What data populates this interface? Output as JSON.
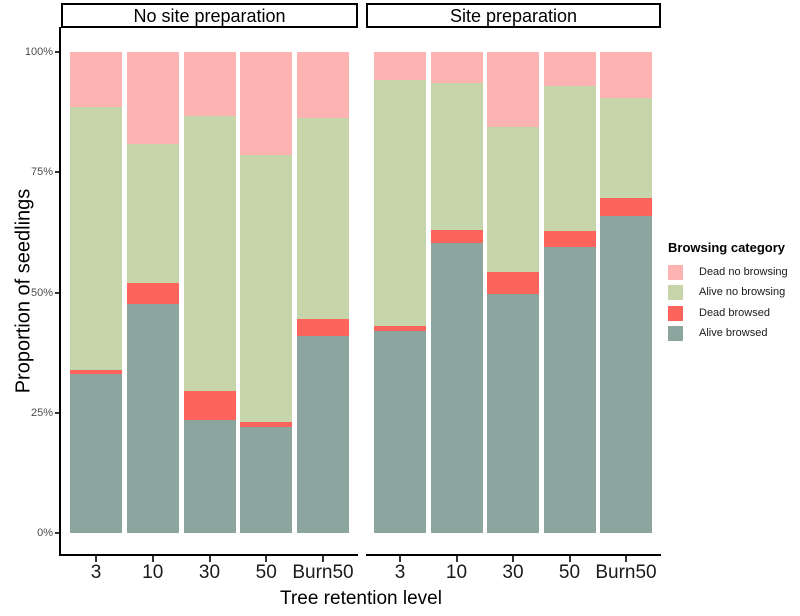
{
  "chart_data": {
    "type": "bar",
    "stacked": true,
    "orientation": "vertical",
    "title": "",
    "xlabel": "Tree retention level",
    "ylabel": "Proportion of seedlings",
    "ylim": [
      0,
      100
    ],
    "grid": false,
    "panel_background": "#ffffff",
    "y_ticks": [
      {
        "label": "0%",
        "value": 0
      },
      {
        "label": "25%",
        "value": 25
      },
      {
        "label": "50%",
        "value": 50
      },
      {
        "label": "75%",
        "value": 75
      },
      {
        "label": "100%",
        "value": 100
      }
    ],
    "categories": [
      "3",
      "10",
      "30",
      "50",
      "Burn50"
    ],
    "legend": {
      "title": "Browsing category",
      "position": "right",
      "entries": [
        {
          "label": "Dead no browsing",
          "color": "#FCB3B1"
        },
        {
          "label": "Alive no browsing",
          "color": "#C7D5AB"
        },
        {
          "label": "Dead browsed",
          "color": "#FC645C"
        },
        {
          "label": "Alive browsed",
          "color": "#8CA69F"
        }
      ]
    },
    "stack_order_bottom_to_top": [
      "Alive browsed",
      "Dead browsed",
      "Alive no browsing",
      "Dead no browsing"
    ],
    "facets": [
      {
        "label": "No site preparation",
        "series": [
          {
            "name": "Dead no browsing",
            "values": [
              11.4,
              19.1,
              13.2,
              21.4,
              13.8
            ]
          },
          {
            "name": "Alive no browsing",
            "values": [
              54.6,
              29.0,
              57.3,
              55.6,
              41.6
            ]
          },
          {
            "name": "Dead browsed",
            "values": [
              1.0,
              4.2,
              6.0,
              1.0,
              3.6
            ]
          },
          {
            "name": "Alive browsed",
            "values": [
              33.0,
              47.7,
              23.5,
              22.0,
              41.0
            ]
          }
        ]
      },
      {
        "label": "Site preparation",
        "series": [
          {
            "name": "Dead no browsing",
            "values": [
              5.8,
              6.5,
              15.5,
              7.0,
              9.5
            ]
          },
          {
            "name": "Alive no browsing",
            "values": [
              51.2,
              30.5,
              30.2,
              30.2,
              20.9
            ]
          },
          {
            "name": "Dead browsed",
            "values": [
              1.0,
              2.8,
              4.5,
              3.3,
              3.6
            ]
          },
          {
            "name": "Alive browsed",
            "values": [
              42.0,
              60.2,
              49.8,
              59.5,
              66.0
            ]
          }
        ]
      }
    ]
  }
}
